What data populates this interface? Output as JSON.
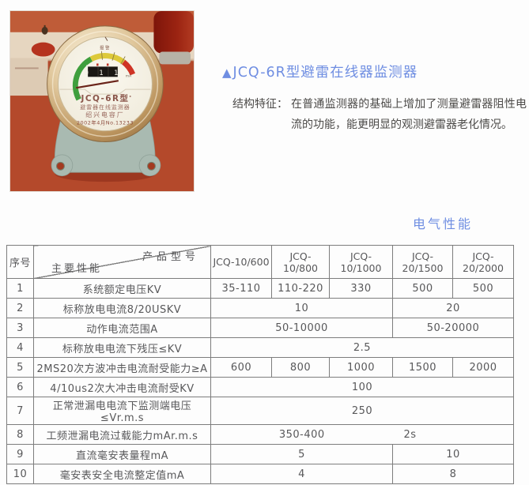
{
  "product": {
    "bullet": "▲",
    "title": "JCQ-6R型避雷在线器监测器",
    "feature_label": "结构特征：",
    "feature_text": "在普通监测器的基础上增加了测量避雷器阻性电流的功能，能更明显的观测避雷器老化情况。",
    "section_heading": "电气性能"
  },
  "photo": {
    "dial": {
      "alarm_label": "报警",
      "counter_display": "0 1 1",
      "unit": "mA",
      "model_line": "JCQ-6R型",
      "name_line": "避雷器在线监测器",
      "factory_line": "绍兴电容厂",
      "serial_line": "2002年4月No.13233"
    }
  },
  "table": {
    "header": {
      "col_no": "序号",
      "corner_top": "产品型号",
      "corner_bottom": "主要性能",
      "models": [
        "JCQ-10/600",
        "JCQ-10/800",
        "JCQ-10/1000",
        "JCQ-20/1500",
        "JCQ-20/2000"
      ]
    },
    "rows": [
      {
        "no": "1",
        "label": "系统额定电压KV",
        "cells": [
          {
            "t": "35-110",
            "s": 1
          },
          {
            "t": "110-220",
            "s": 1
          },
          {
            "t": "330",
            "s": 1
          },
          {
            "t": "500",
            "s": 1
          },
          {
            "t": "500",
            "s": 1
          }
        ]
      },
      {
        "no": "2",
        "label": "标称放电电流8/20USKV",
        "cells": [
          {
            "t": "10",
            "s": 3
          },
          {
            "t": "20",
            "s": 2
          }
        ]
      },
      {
        "no": "3",
        "label": "动作电流范围A",
        "cells": [
          {
            "t": "50-10000",
            "s": 3
          },
          {
            "t": "50-20000",
            "s": 2
          }
        ]
      },
      {
        "no": "4",
        "label": "标称放电电流下残压≤KV",
        "cells": [
          {
            "t": "2.5",
            "s": 5
          }
        ]
      },
      {
        "no": "5",
        "label": "2MS20次方波冲击电流耐受能力≥A",
        "cells": [
          {
            "t": "600",
            "s": 1
          },
          {
            "t": "800",
            "s": 1
          },
          {
            "t": "1000",
            "s": 1
          },
          {
            "t": "1500",
            "s": 1
          },
          {
            "t": "2000",
            "s": 1
          }
        ]
      },
      {
        "no": "6",
        "label": "4/10us2次大冲击电流耐受KV",
        "cells": [
          {
            "t": "100",
            "s": 5
          }
        ]
      },
      {
        "no": "7",
        "label": "正常泄漏电电流下监测端电压≤Vr.m.s",
        "cells": [
          {
            "t": "250",
            "s": 5
          }
        ]
      },
      {
        "no": "8",
        "label": "工频泄漏电流过载能力mAr.m.s",
        "nd": true,
        "cells": [
          {
            "t": "350-400",
            "s": 3
          },
          {
            "t": "2s",
            "s": 2,
            "al": "left"
          }
        ]
      },
      {
        "no": "9",
        "label": "直流毫安表量程mA",
        "cells": [
          {
            "t": "5",
            "s": 3
          },
          {
            "t": "10",
            "s": 2
          }
        ]
      },
      {
        "no": "10",
        "label": "毫安表安全电流整定值mA",
        "cells": [
          {
            "t": "4",
            "s": 3
          },
          {
            "t": "8",
            "s": 2
          }
        ]
      }
    ]
  },
  "colors": {
    "accent": "#6f8ee2",
    "table_border": "#7d7d7d",
    "table_text": "#58585a",
    "body_text": "#4c4a48",
    "photo_background": "#b4492b",
    "gauge_green": "#3f9f3d",
    "gauge_yellow": "#ddc93a",
    "gauge_red": "#cf3425",
    "base_grey": "#a9bab1"
  }
}
